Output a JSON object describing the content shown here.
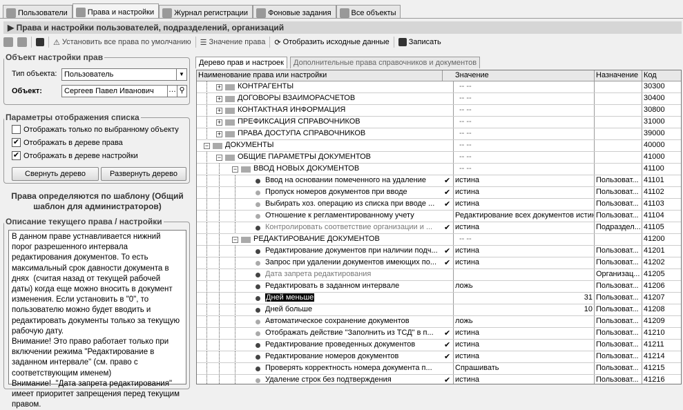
{
  "tabs": [
    {
      "label": "Пользователи",
      "icon": "user-icon"
    },
    {
      "label": "Права и настройки",
      "icon": "keys-icon",
      "active": true
    },
    {
      "label": "Журнал регистрации",
      "icon": "journal-icon"
    },
    {
      "label": "Фоновые задания",
      "icon": "clock-icon"
    },
    {
      "label": "Все объекты",
      "icon": "objects-icon"
    }
  ],
  "title": "Права и настройки пользователей, подразделений, организаций",
  "toolbar": {
    "set_default": "Установить все права по умолчанию",
    "value": "Значение права",
    "show_source": "Отобразить исходные данные",
    "save": "Записать"
  },
  "object_panel": {
    "legend": "Объект настройки прав",
    "type_label": "Тип объекта:",
    "type_value": "Пользователь",
    "object_label": "Объект:",
    "object_value": "Сергеев Павел Иванович"
  },
  "display_panel": {
    "legend": "Параметры отображения списка",
    "options": [
      {
        "label": "Отображать только по  выбранному объекту",
        "checked": false
      },
      {
        "label": "Отображать в дереве права",
        "checked": true
      },
      {
        "label": "Отображать в дереве настройки",
        "checked": true
      }
    ],
    "collapse": "Свернуть дерево",
    "expand": "Развернуть дерево"
  },
  "template_note": "Права определяются по шаблону (Общий шаблон для администраторов)",
  "description": {
    "legend": "Описание текущего права / настройки",
    "text": "В данном праве устнавливается нижний порог разрешенного интервала редактирования документов. То есть максимальный срок давности документа в днях  (считая назад от текущей рабочей даты) когда еще можно вносить в документ изменения. Если установить в \"0\", то пользователю можно будет вводить и редактировать документы только за текущую рабочую дату.\nВнимание! Это право работает только при включении режима \"Редактирование в заданном интервале\" (см. право с соответствующим именем)\nВнимание!  \"Дата запрета редактирования\" имеет приоритет запрещения перед текущим правом."
  },
  "right_tabs": [
    "Дерево прав и настроек",
    "Дополнительные права справочников и документов"
  ],
  "columns": [
    "Наименование права или настройки",
    "Значение",
    "Назначение",
    "Код"
  ],
  "rows": [
    {
      "level": 1,
      "folder": true,
      "exp": "+",
      "name": "КОНТРАГЕНТЫ",
      "value": "-- --",
      "assign": "",
      "code": "30300"
    },
    {
      "level": 1,
      "folder": true,
      "exp": "+",
      "name": "ДОГОВОРЫ ВЗАИМОРАСЧЕТОВ",
      "value": "-- --",
      "assign": "",
      "code": "30400"
    },
    {
      "level": 1,
      "folder": true,
      "exp": "+",
      "name": "КОНТАКТНАЯ ИНФОРМАЦИЯ",
      "value": "-- --",
      "assign": "",
      "code": "30800"
    },
    {
      "level": 1,
      "folder": true,
      "exp": "+",
      "name": "ПРЕФИКСАЦИЯ СПРАВОЧНИКОВ",
      "value": "-- --",
      "assign": "",
      "code": "31000"
    },
    {
      "level": 1,
      "folder": true,
      "exp": "+",
      "name": "ПРАВА ДОСТУПА СПРАВОЧНИКОВ",
      "value": "-- --",
      "assign": "",
      "code": "39000"
    },
    {
      "level": 0,
      "folder": true,
      "exp": "-",
      "name": "ДОКУМЕНТЫ",
      "value": "-- --",
      "assign": "",
      "code": "40000"
    },
    {
      "level": 1,
      "folder": true,
      "exp": "-",
      "name": "ОБЩИЕ ПАРАМЕТРЫ ДОКУМЕНТОВ",
      "value": "-- --",
      "assign": "",
      "code": "41000"
    },
    {
      "level": 2,
      "folder": true,
      "exp": "-",
      "name": "ВВОД НОВЫХ ДОКУМЕНТОВ",
      "value": "-- --",
      "assign": "",
      "code": "41100"
    },
    {
      "level": 3,
      "dot": "dark",
      "name": "Ввод на основании помеченного на удаление",
      "check": true,
      "value": "истина",
      "assign": "Пользоват...",
      "code": "41101"
    },
    {
      "level": 3,
      "dot": "light",
      "name": "Пропуск номеров документов при вводе",
      "check": true,
      "value": "истина",
      "assign": "Пользоват...",
      "code": "41102"
    },
    {
      "level": 3,
      "dot": "light",
      "name": "Выбирать хоз. операцию из списка при вводе ...",
      "check": true,
      "value": "истина",
      "assign": "Пользоват...",
      "code": "41103"
    },
    {
      "level": 3,
      "dot": "light",
      "name": "Отношение к регламентированному учету",
      "value": "Редактирование всех документов истина",
      "assign": "Пользоват...",
      "code": "41104"
    },
    {
      "level": 3,
      "dot": "dark",
      "gray": true,
      "name": "Контролировать соответствие организации и ...",
      "check": true,
      "value": "истина",
      "assign": "Подраздел...",
      "code": "41105"
    },
    {
      "level": 2,
      "folder": true,
      "exp": "-",
      "name": "РЕДАКТИРОВАНИЕ ДОКУМЕНТОВ",
      "value": "-- --",
      "assign": "",
      "code": "41200"
    },
    {
      "level": 3,
      "dot": "dark",
      "name": "Редактирование документов при наличии подч...",
      "check": true,
      "value": "истина",
      "assign": "Пользоват...",
      "code": "41201"
    },
    {
      "level": 3,
      "dot": "light",
      "name": "Запрос при удалении документов имеющих по...",
      "check": true,
      "value": "истина",
      "assign": "Пользоват...",
      "code": "41202"
    },
    {
      "level": 3,
      "dot": "dark",
      "gray": true,
      "name": "Дата запрета редактирования",
      "value": "",
      "assign": "Организац...",
      "code": "41205"
    },
    {
      "level": 3,
      "dot": "dark",
      "name": "Редактировать в заданном интервале",
      "value": "ложь",
      "assign": "Пользоват...",
      "code": "41206"
    },
    {
      "level": 3,
      "dot": "dark",
      "selected": true,
      "name": "Дней меньше",
      "num": "31",
      "value": "",
      "assign": "Пользоват...",
      "code": "41207"
    },
    {
      "level": 3,
      "dot": "dark",
      "name": "Дней больше",
      "num": "10",
      "value": "",
      "assign": "Пользоват...",
      "code": "41208"
    },
    {
      "level": 3,
      "dot": "light",
      "name": "Автоматическое сохранение документов",
      "value": "ложь",
      "assign": "Пользоват...",
      "code": "41209"
    },
    {
      "level": 3,
      "dot": "light",
      "name": "Отображать действие \"Заполнить из ТСД\" в п...",
      "check": true,
      "value": "истина",
      "assign": "Пользоват...",
      "code": "41210"
    },
    {
      "level": 3,
      "dot": "dark",
      "name": "Редактирование проведенных документов",
      "check": true,
      "value": "истина",
      "assign": "Пользоват...",
      "code": "41211"
    },
    {
      "level": 3,
      "dot": "dark",
      "name": "Редактирование номеров документов",
      "check": true,
      "value": "истина",
      "assign": "Пользоват...",
      "code": "41214"
    },
    {
      "level": 3,
      "dot": "dark",
      "name": "Проверять корректность номера документа п...",
      "value": "Спрашивать",
      "assign": "Пользоват...",
      "code": "41215"
    },
    {
      "level": 3,
      "dot": "light",
      "name": "Удаление строк без подтверждения",
      "check": true,
      "value": "истина",
      "assign": "Пользоват...",
      "code": "41216"
    }
  ]
}
